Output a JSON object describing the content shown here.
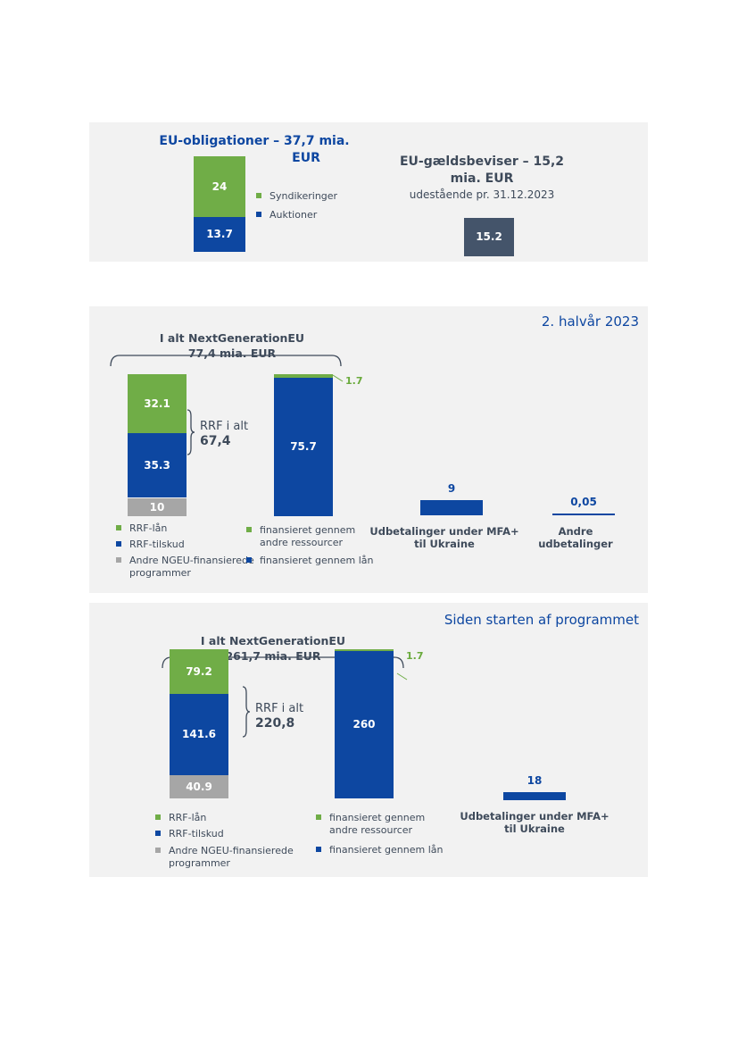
{
  "colors": {
    "green": "#70ad47",
    "blue": "#0d47a1",
    "grey": "#a6a6a6",
    "slate": "#44546a",
    "title_blue": "#0e47a1"
  },
  "panel1": {
    "bonds_title": "EU-obligationer – 37,7 mia.",
    "bonds_title2": "EUR",
    "bills_title": "EU-gældsbeviser – 15,2",
    "bills_title2": "mia. EUR",
    "bills_subtitle": "udestående pr. 31.12.2023",
    "legend": [
      "Syndikeringer",
      "Auktioner"
    ]
  },
  "panel2": {
    "corner": "2. halvår 2023",
    "ngeu_title": "I alt NextGenerationEU",
    "ngeu_total": "77,4 mia. EUR",
    "rrf_label": "RRF i alt",
    "rrf_total": "67,4",
    "mfa_label1": "Udbetalinger under MFA+",
    "mfa_label2": "til Ukraine",
    "other_label1": "Andre",
    "other_label2": "udbetalinger",
    "legend_left": [
      "RRF-lån",
      "RRF-tilskud",
      "Andre NGEU-finansierede",
      "programmer"
    ],
    "legend_right": [
      "finansieret gennem",
      "andre ressourcer",
      "finansieret gennem lån"
    ]
  },
  "panel3": {
    "corner": "Siden starten af programmet",
    "ngeu_title": "I alt NextGenerationEU",
    "ngeu_total": "261,7 mia. EUR",
    "rrf_label": "RRF i alt",
    "rrf_total": "220,8",
    "mfa_label1": "Udbetalinger under MFA+",
    "mfa_label2": "til Ukraine",
    "legend_left": [
      "RRF-lån",
      "RRF-tilskud",
      "Andre NGEU-finansierede",
      "programmer"
    ],
    "legend_right": [
      "finansieret gennem",
      "andre ressourcer",
      "finansieret gennem lån"
    ]
  },
  "chart_data": [
    {
      "type": "bar",
      "title": "EU-obligationer – 37,7 mia. EUR",
      "stacked": true,
      "series": [
        {
          "name": "Syndikeringer",
          "values": [
            24
          ],
          "labels": [
            "24"
          ]
        },
        {
          "name": "Auktioner",
          "values": [
            13.7
          ],
          "labels": [
            "13.7"
          ]
        }
      ]
    },
    {
      "type": "bar",
      "title": "EU-gældsbeviser – 15,2 mia. EUR",
      "subtitle": "udestående pr. 31.12.2023",
      "values": [
        15.2
      ],
      "labels": [
        "15.2"
      ]
    },
    {
      "type": "bar",
      "title": "2. halvår 2023",
      "stacked": true,
      "ngeu_uses": [
        {
          "name": "RRF-lån",
          "value": 32.1,
          "label": "32.1"
        },
        {
          "name": "RRF-tilskud",
          "value": 35.3,
          "label": "35.3"
        },
        {
          "name": "Andre NGEU-finansierede programmer",
          "value": 10,
          "label": "10"
        }
      ],
      "ngeu_funding": [
        {
          "name": "finansieret gennem andre ressourcer",
          "value": 1.7,
          "label": "1.7"
        },
        {
          "name": "finansieret gennem lån",
          "value": 75.7,
          "label": "75.7"
        }
      ],
      "other_bars": [
        {
          "name": "Udbetalinger under MFA+ til Ukraine",
          "value": 9,
          "label": "9"
        },
        {
          "name": "Andre udbetalinger",
          "value": 0.05,
          "label": "0,05"
        }
      ]
    },
    {
      "type": "bar",
      "title": "Siden starten af programmet",
      "stacked": true,
      "ngeu_uses": [
        {
          "name": "RRF-lån",
          "value": 79.2,
          "label": "79.2"
        },
        {
          "name": "RRF-tilskud",
          "value": 141.6,
          "label": "141.6"
        },
        {
          "name": "Andre NGEU-finansierede programmer",
          "value": 40.9,
          "label": "40.9"
        }
      ],
      "ngeu_funding": [
        {
          "name": "finansieret gennem andre ressourcer",
          "value": 1.7,
          "label": "1.7"
        },
        {
          "name": "finansieret gennem lån",
          "value": 260,
          "label": "260"
        }
      ],
      "other_bars": [
        {
          "name": "Udbetalinger under MFA+ til Ukraine",
          "value": 18,
          "label": "18"
        }
      ]
    }
  ]
}
